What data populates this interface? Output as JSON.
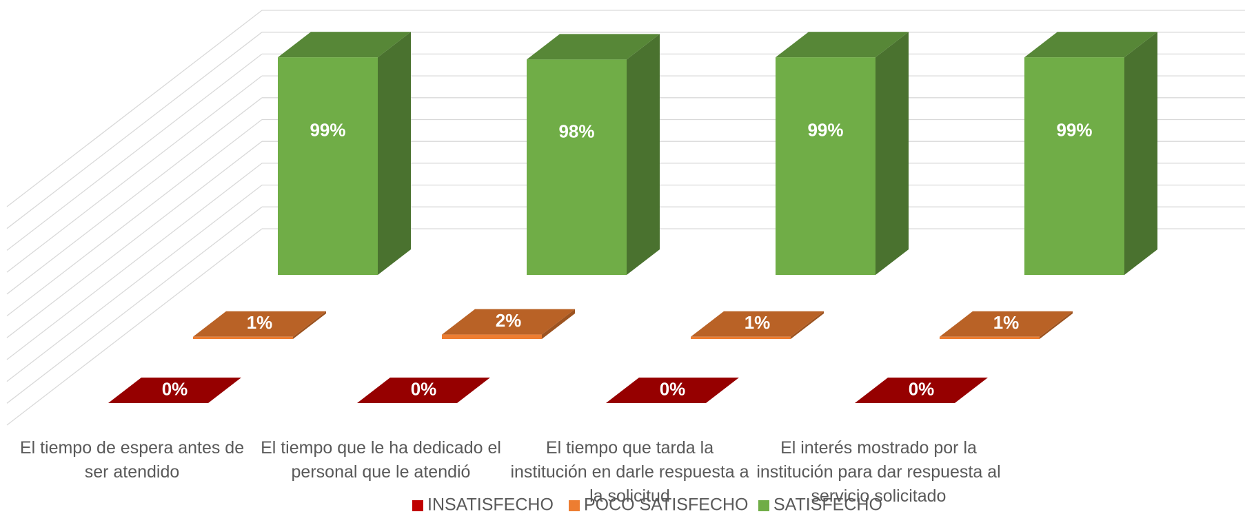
{
  "chart_data": {
    "type": "bar3d",
    "categories": [
      "El tiempo de espera antes de ser atendido",
      "El tiempo que le ha dedicado el personal que le atendió",
      "El tiempo que tarda la institución en darle respuesta a la solicitud",
      "El interés mostrado por la institución para dar respuesta al servicio solicitado"
    ],
    "series": [
      {
        "name": "INSATISFECHO",
        "color": "#c00000",
        "values": [
          0,
          0,
          0,
          0
        ],
        "value_labels": [
          "0%",
          "0%",
          "0%",
          "0%"
        ]
      },
      {
        "name": "POCO SATISFECHO",
        "color": "#ed7d31",
        "values": [
          1,
          2,
          1,
          1
        ],
        "value_labels": [
          "1%",
          "2%",
          "1%",
          "1%"
        ]
      },
      {
        "name": "SATISFECHO",
        "color": "#70ad47",
        "values": [
          99,
          98,
          99,
          99
        ],
        "value_labels": [
          "99%",
          "98%",
          "99%",
          "99%"
        ]
      }
    ],
    "ylim": [
      0,
      100
    ],
    "legend": "bottom"
  }
}
